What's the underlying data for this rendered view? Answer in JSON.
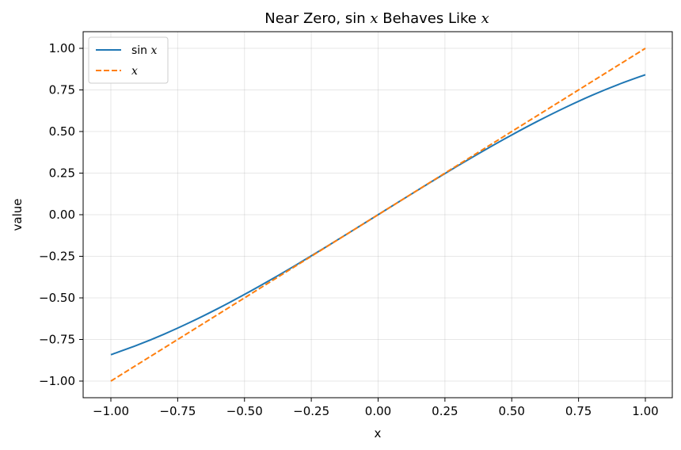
{
  "chart_data": {
    "type": "line",
    "title_prefix": "Near Zero, ",
    "title_fn": "sin",
    "title_var1": "x",
    "title_mid": " Behaves Like ",
    "title_var2": "x",
    "xlabel": "x",
    "ylabel": "value",
    "xlim": [
      -1.0,
      1.0
    ],
    "ylim": [
      -1.0,
      1.0
    ],
    "x_ticks": [
      -1.0,
      -0.75,
      -0.5,
      -0.25,
      0.0,
      0.25,
      0.5,
      0.75,
      1.0
    ],
    "x_tick_labels": [
      "−1.00",
      "−0.75",
      "−0.50",
      "−0.25",
      "0.00",
      "0.25",
      "0.50",
      "0.75",
      "1.00"
    ],
    "y_ticks": [
      -1.0,
      -0.75,
      -0.5,
      -0.25,
      0.0,
      0.25,
      0.5,
      0.75,
      1.0
    ],
    "y_tick_labels": [
      "−1.00",
      "−0.75",
      "−0.50",
      "−0.25",
      "0.00",
      "0.25",
      "0.50",
      "0.75",
      "1.00"
    ],
    "grid": true,
    "legend_position": "top-left",
    "series": [
      {
        "legend_fn": "sin",
        "legend_var": "x",
        "color": "#1f77b4",
        "dash": "solid",
        "x": [
          -1.0,
          -0.9,
          -0.8,
          -0.7,
          -0.6,
          -0.5,
          -0.4,
          -0.3,
          -0.2,
          -0.1,
          0.0,
          0.1,
          0.2,
          0.3,
          0.4,
          0.5,
          0.6,
          0.7,
          0.8,
          0.9,
          1.0
        ],
        "y": [
          -0.8415,
          -0.7833,
          -0.7174,
          -0.6442,
          -0.5646,
          -0.4794,
          -0.3894,
          -0.2955,
          -0.1987,
          -0.0998,
          0.0,
          0.0998,
          0.1987,
          0.2955,
          0.3894,
          0.4794,
          0.5646,
          0.6442,
          0.7174,
          0.7833,
          0.8415
        ]
      },
      {
        "legend_fn": "",
        "legend_var": "x",
        "color": "#ff7f0e",
        "dash": "dashed",
        "x": [
          -1.0,
          1.0
        ],
        "y": [
          -1.0,
          1.0
        ]
      }
    ]
  }
}
